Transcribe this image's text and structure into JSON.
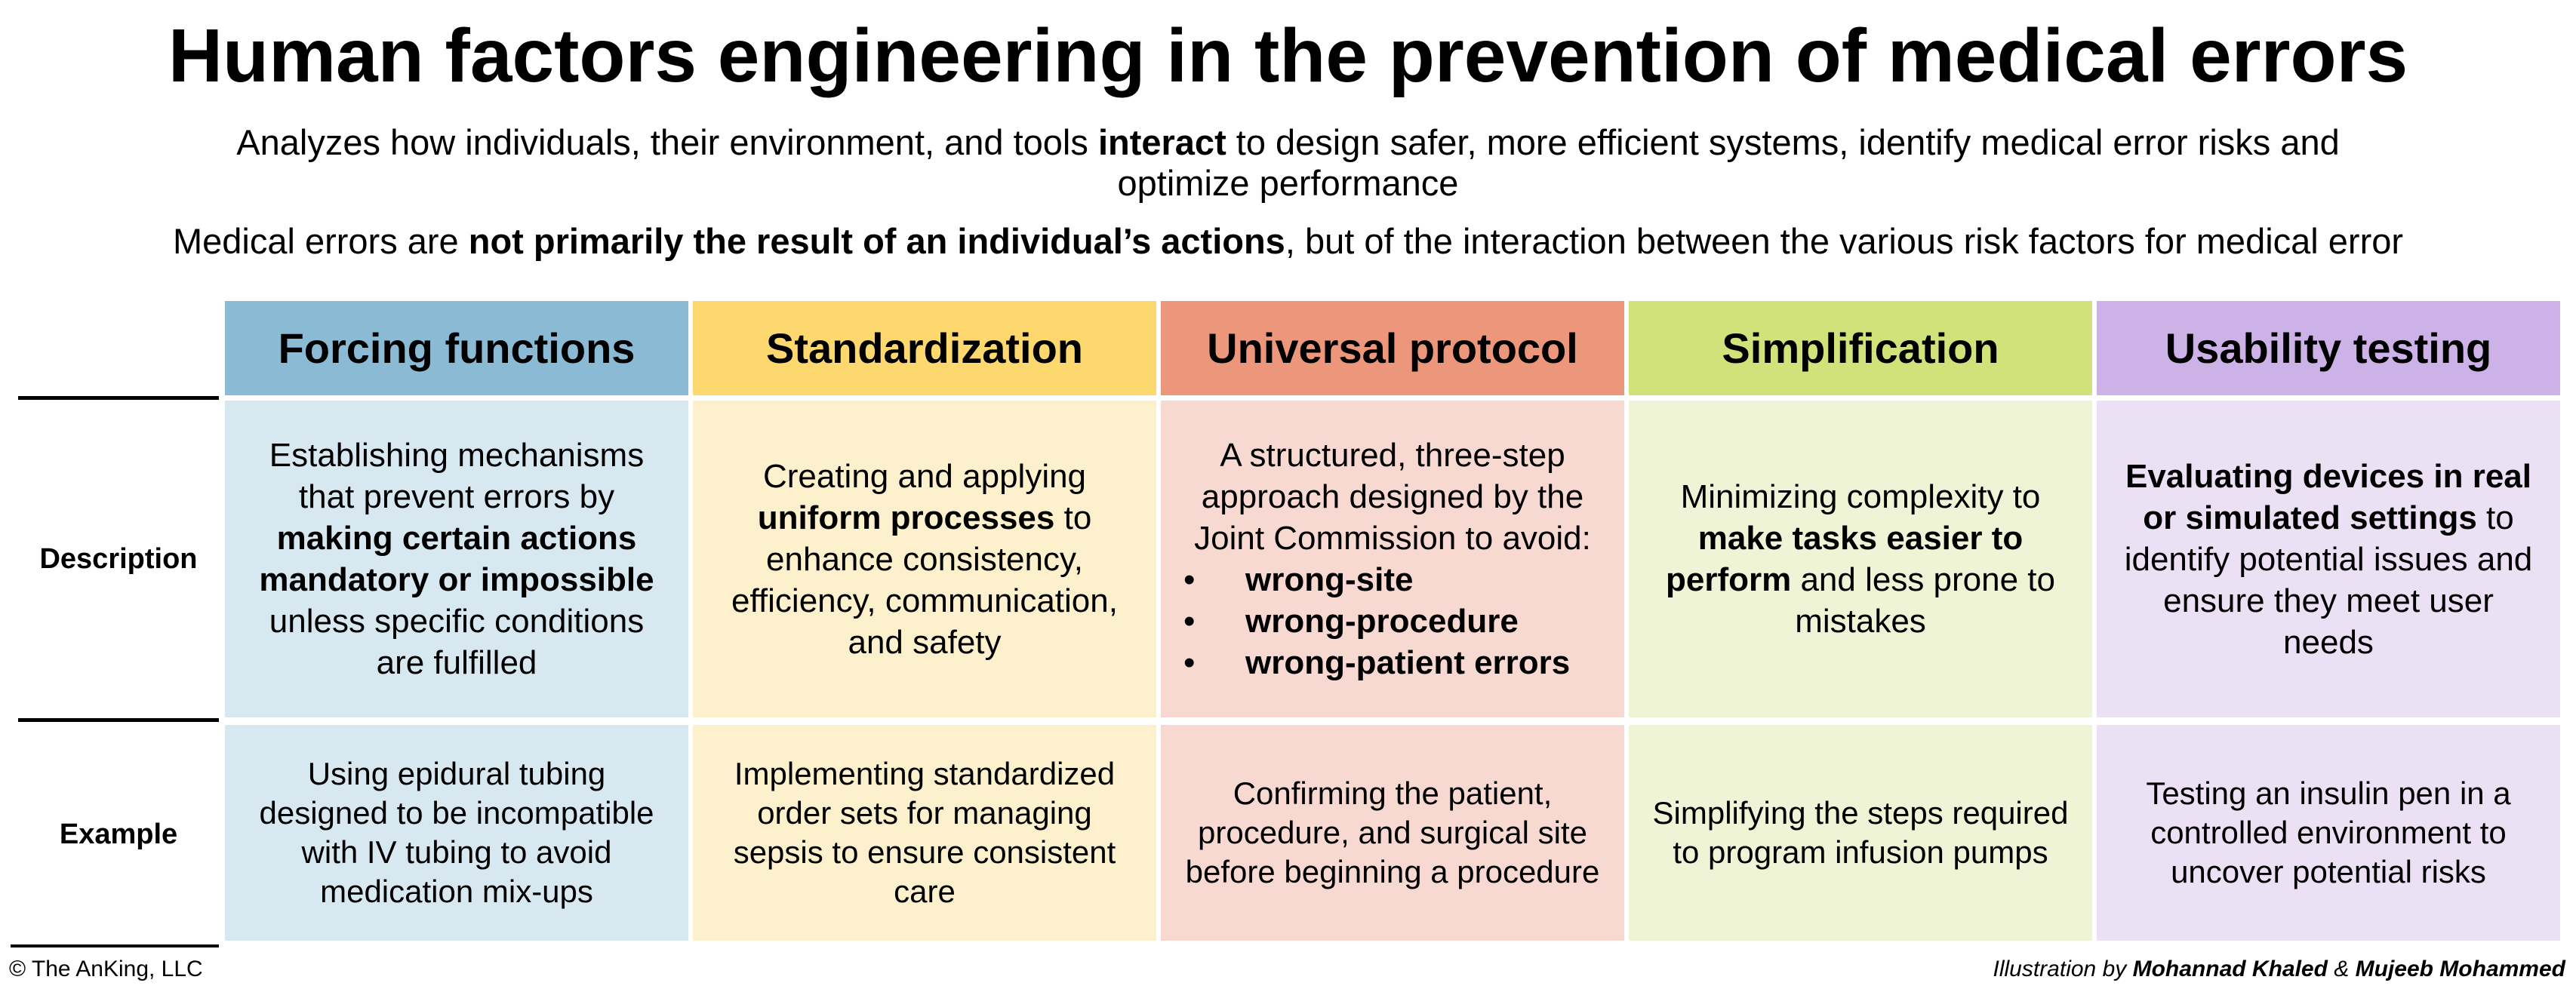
{
  "title": "Human factors engineering in the prevention of medical errors",
  "subtitle": {
    "before": "Analyzes how individuals, their environment, and tools ",
    "bold": "interact",
    "after": " to design safer, more efficient systems, identify medical error risks and optimize performance"
  },
  "subtitle2": {
    "before": "Medical errors are ",
    "bold": "not primarily the result of an individual’s actions",
    "after": ", but of the interaction between the various risk factors for medical error"
  },
  "row_labels": {
    "description": "Description",
    "example": "Example"
  },
  "colors": {
    "forcing_header": "#8bbad5",
    "forcing_cell": "#d8e8f1",
    "standard_header": "#fdd86e",
    "standard_cell": "#fdf0cc",
    "protocol_header": "#ec977b",
    "protocol_cell": "#f8d9d2",
    "simplify_header": "#d2e27a",
    "simplify_cell": "#eef4d5",
    "usability_header": "#cdb2e7",
    "usability_cell": "#ece0f5"
  },
  "columns": {
    "forcing": {
      "header": "Forcing functions",
      "desc": {
        "t1": "Establishing mechanisms that prevent errors by ",
        "b1": "making certain actions mandatory or impossible",
        "t2": " unless specific conditions are fulfilled"
      },
      "example": "Using epidural tubing designed to be incompatible with IV tubing to avoid medication mix-ups"
    },
    "standardization": {
      "header": "Standardization",
      "desc": {
        "t1": "Creating and applying ",
        "b1": "uniform processes",
        "t2": " to enhance consistency, efficiency, communication, and safety"
      },
      "example": "Implementing standardized order sets for managing sepsis to ensure consistent care"
    },
    "protocol": {
      "header": "Universal protocol",
      "desc": {
        "intro": "A structured, three-step approach designed by the Joint Commission to avoid:",
        "bullets": [
          "wrong-site",
          "wrong-procedure",
          "wrong-patient errors"
        ]
      },
      "example": "Confirming the patient, procedure, and surgical site before beginning a procedure"
    },
    "simplification": {
      "header": "Simplification",
      "desc": {
        "t1": "Minimizing complexity to ",
        "b1": "make tasks easier to perform",
        "t2": " and less prone to mistakes"
      },
      "example": "Simplifying the steps required to program infusion pumps"
    },
    "usability": {
      "header": "Usability testing",
      "desc": {
        "b1": "Evaluating devices in real or simulated settings",
        "t2": " to identify potential issues and ensure they meet user needs"
      },
      "example": "Testing an insulin pen in a controlled environment to uncover potential risks"
    }
  },
  "footer": {
    "copyright": "© The AnKing, LLC",
    "credit_prefix": "Illustration by ",
    "author1": "Mohannad Khaled",
    "amp": " & ",
    "author2": "Mujeeb Mohammed"
  }
}
